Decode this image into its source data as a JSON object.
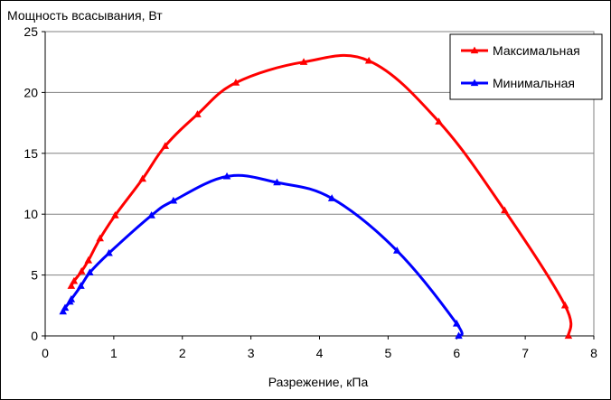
{
  "chart_data": {
    "type": "line",
    "ylabel": "Мощность всасывания, Вт",
    "xlabel": "Разрежение, кПа",
    "xlim": [
      0,
      8
    ],
    "ylim": [
      0,
      25
    ],
    "x_ticks": [
      "0",
      "1",
      "2",
      "3",
      "4",
      "5",
      "6",
      "7",
      "8"
    ],
    "y_ticks": [
      "0",
      "5",
      "10",
      "15",
      "20",
      "25"
    ],
    "grid": "horizontal",
    "legend_position": "top-right",
    "series": [
      {
        "name": "Максимальная",
        "color": "#ff0000",
        "points": [
          [
            0.38,
            4.1
          ],
          [
            0.42,
            4.5
          ],
          [
            0.53,
            5.3
          ],
          [
            0.63,
            6.2
          ],
          [
            0.8,
            8.0
          ],
          [
            1.02,
            9.9
          ],
          [
            1.42,
            12.9
          ],
          [
            1.75,
            15.6
          ],
          [
            2.22,
            18.2
          ],
          [
            2.78,
            20.8
          ],
          [
            3.77,
            22.5
          ],
          [
            4.72,
            22.6
          ],
          [
            5.74,
            17.6
          ],
          [
            6.7,
            10.3
          ],
          [
            7.58,
            2.5
          ],
          [
            7.63,
            0.0
          ]
        ]
      },
      {
        "name": "Минимальная",
        "color": "#0000ff",
        "points": [
          [
            0.26,
            2.0
          ],
          [
            0.29,
            2.3
          ],
          [
            0.36,
            2.8
          ],
          [
            0.38,
            3.0
          ],
          [
            0.52,
            4.1
          ],
          [
            0.65,
            5.2
          ],
          [
            0.93,
            6.8
          ],
          [
            1.55,
            9.9
          ],
          [
            1.87,
            11.1
          ],
          [
            2.65,
            13.1
          ],
          [
            3.38,
            12.6
          ],
          [
            4.18,
            11.3
          ],
          [
            5.13,
            7.0
          ],
          [
            6.0,
            1.0
          ],
          [
            6.03,
            0.0
          ]
        ]
      }
    ]
  }
}
